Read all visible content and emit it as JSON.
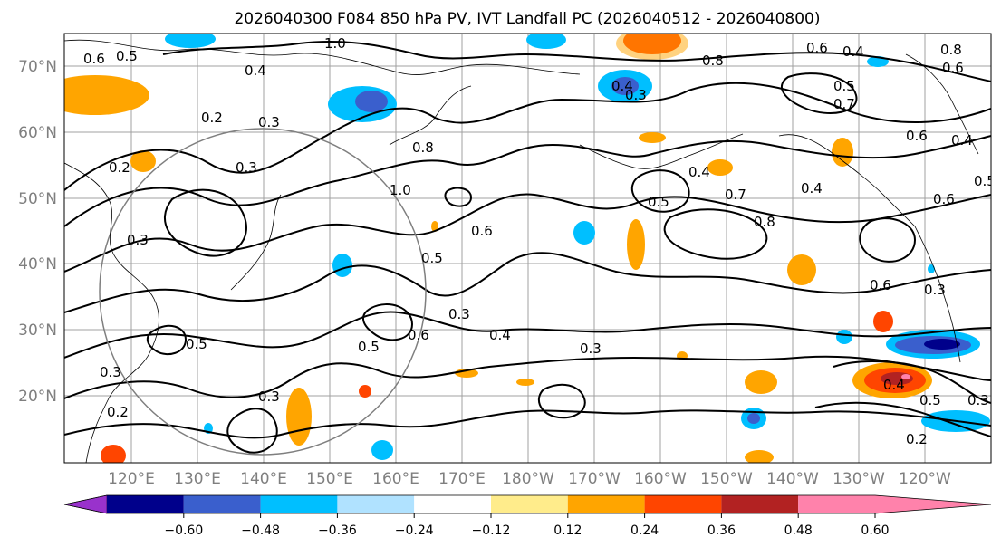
{
  "title": "2026040300 F084 850 hPa PV, IVT Landfall PC (2026040512 - 2026040800)",
  "latitudes": [
    "70°N",
    "60°N",
    "50°N",
    "40°N",
    "30°N",
    "20°N"
  ],
  "longitudes": [
    "120°E",
    "130°E",
    "140°E",
    "150°E",
    "160°E",
    "170°E",
    "180°W",
    "170°W",
    "160°W",
    "150°W",
    "140°W",
    "130°W",
    "120°W"
  ],
  "colorbar": {
    "ticks": [
      "−0.60",
      "−0.48",
      "−0.36",
      "−0.24",
      "−0.12",
      "0.12",
      "0.24",
      "0.36",
      "0.48",
      "0.60"
    ],
    "colors": [
      "#9932cc",
      "#00008b",
      "#3a5fcd",
      "#00bfff",
      "#b0e2ff",
      "#ffffff",
      "#ffec8b",
      "#ffa500",
      "#ff4500",
      "#b22222",
      "#ff82ab"
    ]
  },
  "contour_labels": [
    "0.6",
    "0.5",
    "0.4",
    "0.2",
    "0.3",
    "1.0",
    "0.4",
    "0.3",
    "0.2",
    "0.3",
    "0.8",
    "1.0",
    "0.6",
    "0.5",
    "0.5",
    "0.7",
    "0.8",
    "0.4",
    "0.8",
    "0.6",
    "0.5",
    "0.7",
    "0.6",
    "0.3",
    "0.3",
    "0.4",
    "0.5",
    "0.3",
    "0.2",
    "0.3",
    "0.3",
    "0.2",
    "0.4",
    "0.5",
    "0.4",
    "0.6",
    "0.8",
    "0.6",
    "0.5",
    "0.3",
    "0.4",
    "0.3",
    "0.5",
    "0.6",
    "0.6",
    "0.4"
  ]
}
